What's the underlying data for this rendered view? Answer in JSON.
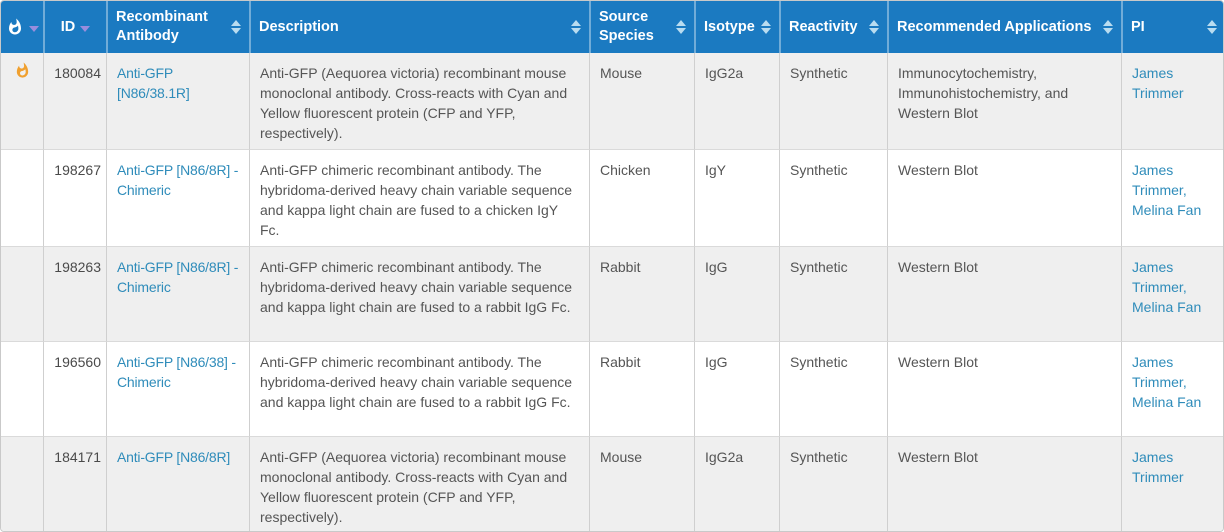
{
  "colors": {
    "header_bg": "#1b7ac1",
    "header_text": "#ffffff",
    "stripe": "#efefef",
    "link": "#2f8cba",
    "body_text": "#555555",
    "id_text": "#4a4a4a",
    "flame": "#f0a02f",
    "sort_caret": "#998ddd",
    "sort_arrow": "#b9dcf0",
    "border_outer": "#c9c9c9",
    "border_col": "#cfcfcf",
    "border_row": "#dadada"
  },
  "table": {
    "columns": [
      {
        "key": "flame",
        "label": "",
        "icon": "flame-icon",
        "sort": "caret"
      },
      {
        "key": "id",
        "label": "ID",
        "sort": "caret"
      },
      {
        "key": "antibody",
        "label": "Recombinant Antibody",
        "sort": "arrows"
      },
      {
        "key": "description",
        "label": "Description",
        "sort": "arrows"
      },
      {
        "key": "source",
        "label": "Source Species",
        "sort": "arrows"
      },
      {
        "key": "isotype",
        "label": "Isotype",
        "sort": "arrows"
      },
      {
        "key": "reactivity",
        "label": "Reactivity",
        "sort": "arrows"
      },
      {
        "key": "applications",
        "label": "Recommended Applications",
        "sort": "arrows"
      },
      {
        "key": "pi",
        "label": "PI",
        "sort": "arrows"
      }
    ],
    "rows": [
      {
        "flame": true,
        "id": "180084",
        "antibody": "Anti-GFP [N86/38.1R]",
        "description": "Anti-GFP (Aequorea victoria) recombinant mouse monoclonal antibody. Cross-reacts with Cyan and Yellow fluorescent protein (CFP and YFP, respectively).",
        "source": "Mouse",
        "isotype": "IgG2a",
        "reactivity": "Synthetic",
        "applications": "Immunocytochemistry, Immunohistochemistry, and Western Blot",
        "pi": [
          "James Trimmer"
        ]
      },
      {
        "flame": false,
        "id": "198267",
        "antibody": "Anti-GFP [N86/8R] - Chimeric",
        "description": "Anti-GFP chimeric recombinant antibody. The hybridoma-derived heavy chain variable sequence and kappa light chain are fused to a chicken IgY Fc.",
        "source": "Chicken",
        "isotype": "IgY",
        "reactivity": "Synthetic",
        "applications": "Western Blot",
        "pi": [
          "James Trimmer",
          "Melina Fan"
        ]
      },
      {
        "flame": false,
        "id": "198263",
        "antibody": "Anti-GFP [N86/8R] - Chimeric",
        "description": "Anti-GFP chimeric recombinant antibody. The hybridoma-derived heavy chain variable sequence and kappa light chain are fused to a rabbit IgG Fc.",
        "source": "Rabbit",
        "isotype": "IgG",
        "reactivity": "Synthetic",
        "applications": "Western Blot",
        "pi": [
          "James Trimmer",
          "Melina Fan"
        ]
      },
      {
        "flame": false,
        "id": "196560",
        "antibody": "Anti-GFP [N86/38] - Chimeric",
        "description": "Anti-GFP chimeric recombinant antibody. The hybridoma-derived heavy chain variable sequence and kappa light chain are fused to a rabbit IgG Fc.",
        "source": "Rabbit",
        "isotype": "IgG",
        "reactivity": "Synthetic",
        "applications": "Western Blot",
        "pi": [
          "James Trimmer",
          "Melina Fan"
        ]
      },
      {
        "flame": false,
        "id": "184171",
        "antibody": "Anti-GFP [N86/8R]",
        "description": "Anti-GFP (Aequorea victoria) recombinant mouse monoclonal antibody. Cross-reacts with Cyan and Yellow fluorescent protein (CFP and YFP, respectively).",
        "source": "Mouse",
        "isotype": "IgG2a",
        "reactivity": "Synthetic",
        "applications": "Western Blot",
        "pi": [
          "James Trimmer"
        ]
      }
    ]
  }
}
